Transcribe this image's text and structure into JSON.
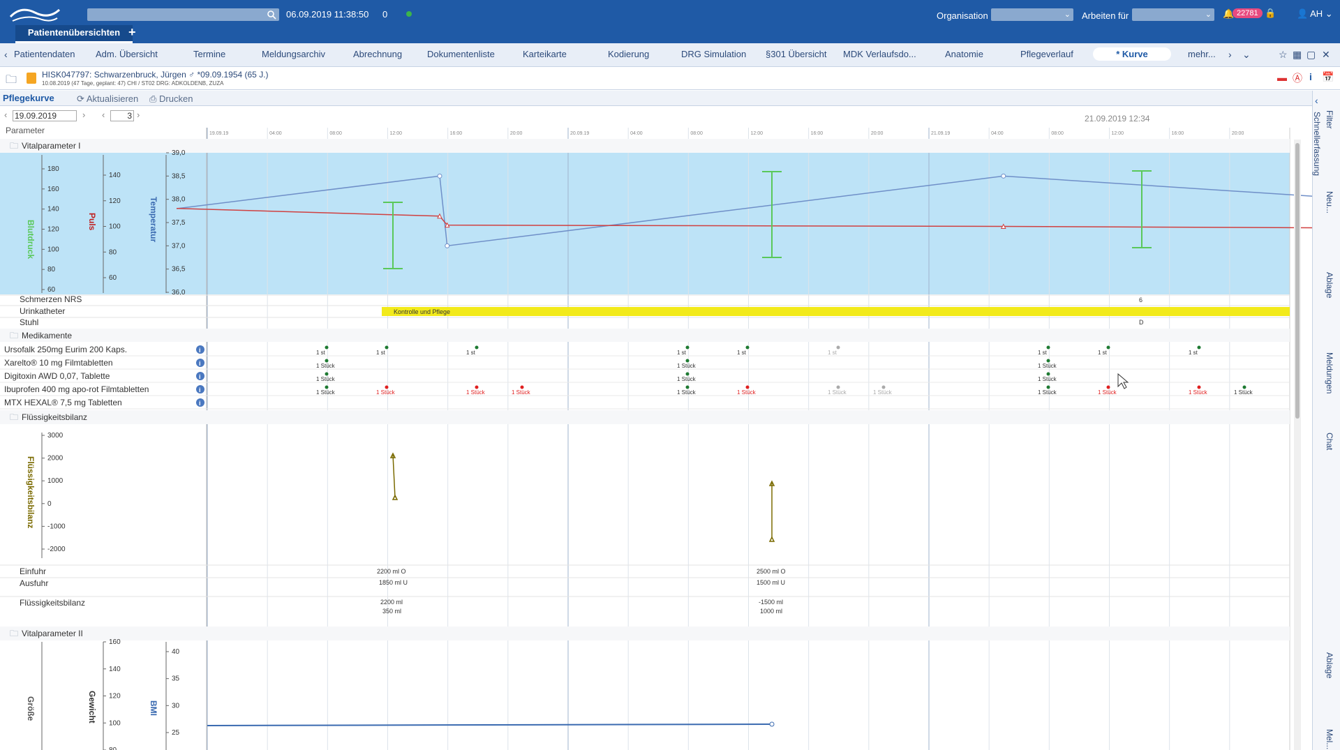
{
  "header": {
    "datetime": "06.09.2019 11:38:50",
    "count": "0",
    "org_label": "Organisation",
    "arbeiten_label": "Arbeiten für",
    "notifications": "22781",
    "user": "AH",
    "patient_tab": "Patientenübersichten",
    "add_tab": "+"
  },
  "nav": {
    "tabs": [
      "Patientendaten",
      "Adm. Übersicht",
      "Termine",
      "Meldungsarchiv",
      "Abrechnung",
      "Dokumentenliste",
      "Karteikarte",
      "Kodierung",
      "DRG Simulation",
      "§301 Übersicht",
      "MDK Verlaufsdo...",
      "Anatomie",
      "Pflegeverlauf",
      "* Kurve",
      "mehr..."
    ]
  },
  "patient": {
    "name": "HISK047797: Schwarzenbruck, Jürgen ♂ *09.09.1954 (65 J.)",
    "sub": "10.08.2019 (47 Tage, geplant: 47) CHI / ST02 DRG: ADKOLDENB, ZUZA"
  },
  "toolbar": {
    "tab": "Pflegekurve",
    "refresh": "Aktualisieren",
    "print": "Drucken"
  },
  "datebar": {
    "date": "19.09.2019",
    "days": "3",
    "param_label": "Parameter",
    "chart_date": "21.09.2019 12:34"
  },
  "sections": {
    "vital1": "Vitalparameter I",
    "medikamente": "Medikamente",
    "fluid": "Flüssigkeitsbilanz",
    "vital2": "Vitalparameter II"
  },
  "rows": {
    "schmerzen": "Schmerzen NRS",
    "urinkatheter": "Urinkatheter",
    "stuhl": "Stuhl",
    "urinkatheter_note": "Kontrolle und Pflege",
    "schmerzen_value": "6",
    "stuhl_value": "D",
    "einfuhr": "Einfuhr",
    "ausfuhr": "Ausfuhr",
    "bilanz": "Flüssigkeitsbilanz"
  },
  "medications": [
    {
      "name": "Ursofalk 250mg Eurim 200 Kaps."
    },
    {
      "name": "Xarelto® 10 mg Filmtabletten"
    },
    {
      "name": "Digitoxin AWD 0,07, Tablette"
    },
    {
      "name": "Ibuprofen 400 mg apo-rot Filmtabletten"
    },
    {
      "name": "MTX HEXAL® 7,5 mg Tabletten"
    }
  ],
  "fluid_values": {
    "einfuhr": [
      "2200 ml O",
      "2500 ml O"
    ],
    "ausfuhr": [
      "1850 ml U",
      "1500 ml U"
    ],
    "bilanz1": [
      "2200 ml",
      "-1500 ml"
    ],
    "bilanz2": [
      "350 ml",
      "1000 ml"
    ]
  },
  "axes": {
    "blutdruck": "Blutdruck",
    "puls": "Puls",
    "temperatur": "Temperatur",
    "fluid": "Flüssigkeitsbilanz",
    "groesse": "Größe",
    "gewicht": "Gewicht",
    "bmi": "BMI",
    "blutdruck_ticks": [
      "180",
      "160",
      "140",
      "120",
      "100",
      "80",
      "60"
    ],
    "puls_ticks": [
      "140",
      "120",
      "100",
      "80",
      "60"
    ],
    "temp_ticks": [
      "39,0",
      "38,5",
      "38,0",
      "37,5",
      "37,0",
      "36,5",
      "36,0"
    ],
    "fluid_ticks": [
      "3000",
      "2000",
      "1000",
      "0",
      "-1000",
      "-2000"
    ],
    "gewicht_ticks": [
      "160",
      "140",
      "120",
      "100",
      "80"
    ],
    "bmi_ticks": [
      "40",
      "35",
      "30",
      "25"
    ]
  },
  "time_labels": [
    "19.09.19",
    "04:00",
    "08:00",
    "12:00",
    "16:00",
    "20:00",
    "20.09.19",
    "04:00",
    "08:00",
    "12:00",
    "16:00",
    "20:00",
    "21.09.19",
    "04:00",
    "08:00",
    "12:00",
    "16:00",
    "20:00"
  ],
  "side_tabs": [
    "Filter",
    "Schnellerfassung",
    "Neu...",
    "Ablage",
    "Meldungen",
    "Chat",
    "Ablage",
    "Mel..."
  ],
  "colors": {
    "primary": "#1f5aa6",
    "vital_bg": "#bde3f7",
    "catheter": "#f2ea1b",
    "med_green": "#1e7a32",
    "med_red": "#e02020"
  },
  "chart_data": [
    {
      "type": "line",
      "title": "Vitalparameter I",
      "series": [
        {
          "name": "Temperatur",
          "values": [
            [
              0,
              37.8
            ],
            [
              17.5,
              38.5
            ],
            [
              18,
              37.0
            ],
            [
              55,
              38.5
            ],
            [
              93,
              37.7
            ],
            [
              107,
              37.7
            ]
          ]
        },
        {
          "name": "Puls",
          "values": [
            [
              0,
              114
            ],
            [
              17.5,
              108
            ],
            [
              18,
              101
            ],
            [
              55,
              100
            ],
            [
              93,
              98
            ],
            [
              107,
              103
            ]
          ]
        }
      ]
    }
  ]
}
